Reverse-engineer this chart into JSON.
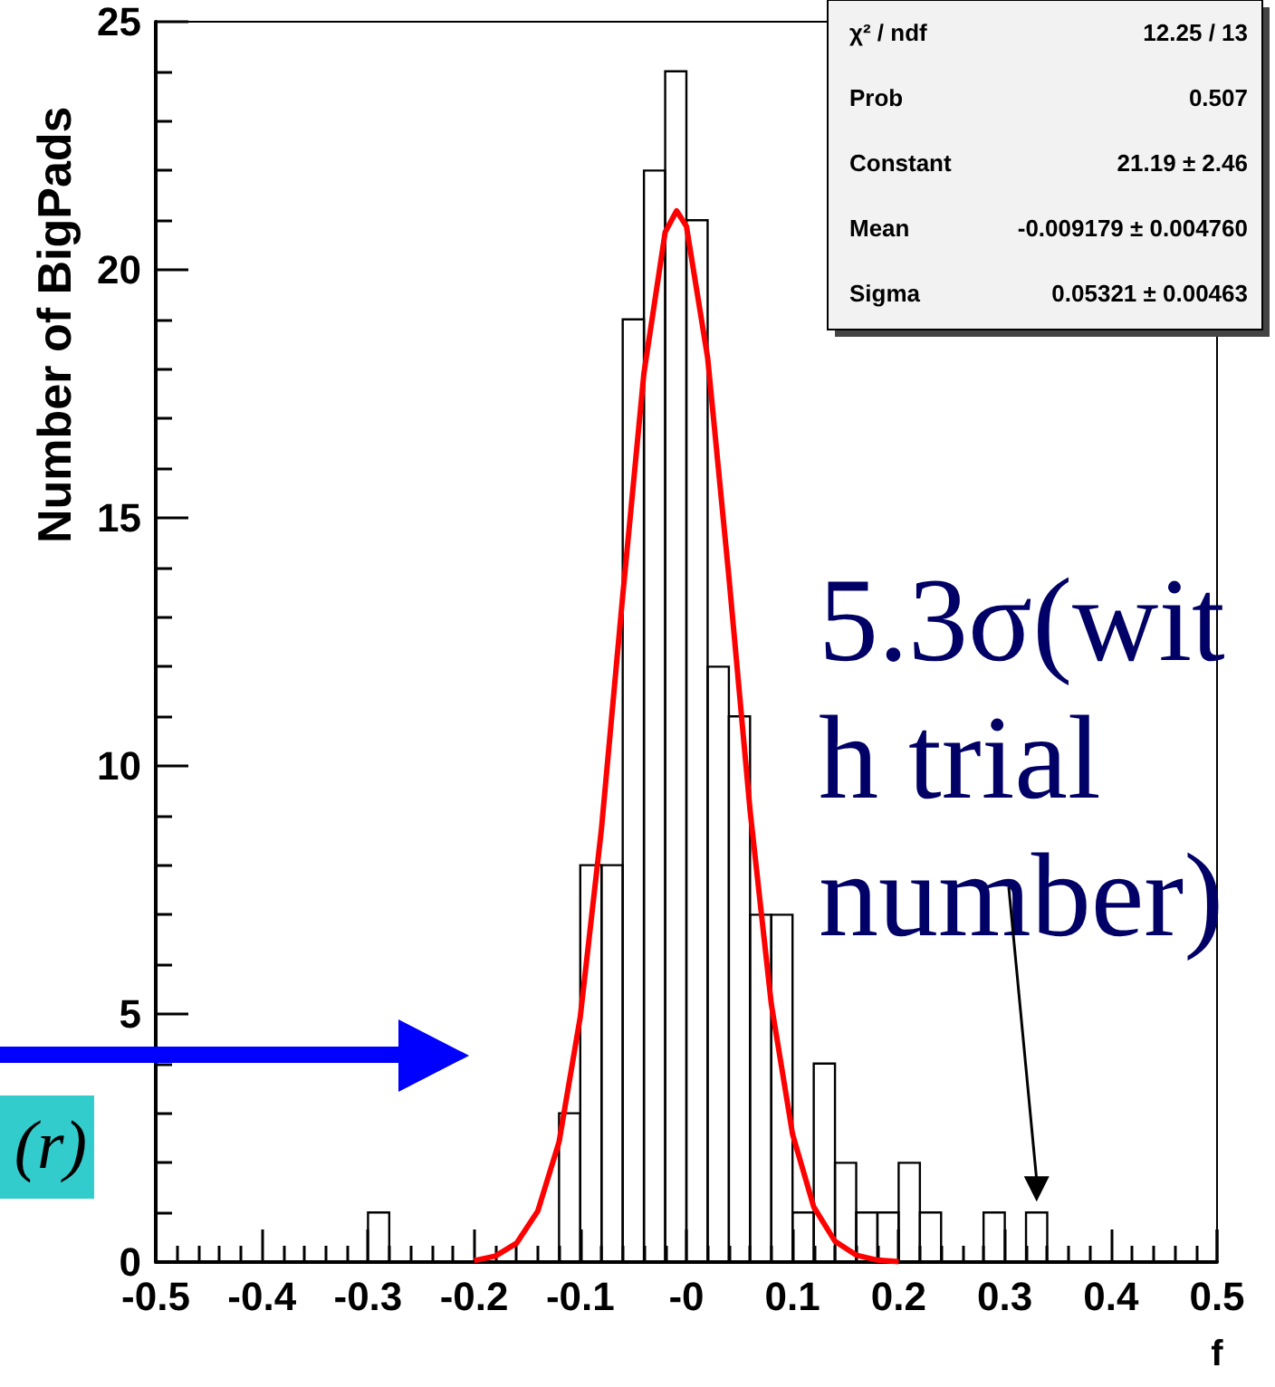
{
  "chart_data": {
    "type": "histogram",
    "xlabel": "f",
    "ylabel": "Number of BigPads",
    "xlim": [
      -0.5,
      0.5
    ],
    "xticks": [
      -0.5,
      -0.4,
      -0.3,
      -0.2,
      -0.1,
      {
        "value": 0,
        "label": "-0"
      },
      0.1,
      0.2,
      0.3,
      0.4,
      0.5
    ],
    "ylim": [
      0,
      25
    ],
    "yticks": [
      0,
      5,
      10,
      15,
      20,
      25
    ],
    "grid": false,
    "marker": "none",
    "series": [
      {
        "color": "#000000",
        "bins": [
          -0.5,
          -0.48,
          -0.46,
          -0.44,
          -0.42,
          -0.4,
          -0.38,
          -0.36,
          -0.34,
          -0.32,
          -0.3,
          -0.28,
          -0.26,
          -0.24,
          -0.22,
          -0.2,
          -0.18,
          -0.16,
          -0.14,
          -0.12,
          -0.1,
          -0.08,
          -0.06,
          -0.04,
          -0.02,
          0,
          0.02,
          0.04,
          0.06,
          0.08,
          0.1,
          0.12,
          0.14,
          0.16,
          0.18,
          0.2,
          0.22,
          0.24,
          0.26,
          0.28,
          0.3,
          0.32,
          0.34,
          0.36,
          0.38,
          0.4,
          0.42,
          0.44,
          0.46,
          0.48,
          0.5
        ],
        "values": [
          0,
          0,
          0,
          0,
          0,
          0,
          0,
          0,
          0,
          0,
          1,
          0,
          0,
          0,
          0,
          0,
          0,
          0,
          0,
          3,
          8,
          8,
          19,
          22,
          24,
          21,
          12,
          11,
          7,
          7,
          1,
          4,
          2,
          1,
          1,
          2,
          1,
          0,
          0,
          1,
          0,
          1,
          0,
          0,
          0,
          0,
          0,
          0,
          0,
          0
        ]
      },
      {
        "type": "line",
        "color": "#ff0000",
        "x": [
          -0.2,
          -0.18,
          -0.16,
          -0.14,
          -0.12,
          -0.1,
          -0.08,
          -0.06,
          -0.04,
          -0.02,
          -0.00918,
          0,
          0.02,
          0.04,
          0.06,
          0.08,
          0.1,
          0.12,
          0.14,
          0.16,
          0.18,
          0.2
        ],
        "values": [
          0.03,
          0.12,
          0.38,
          1.03,
          2.42,
          4.94,
          8.74,
          13.43,
          17.92,
          20.76,
          21.19,
          20.88,
          18.23,
          13.82,
          9.1,
          5.2,
          2.58,
          1.11,
          0.42,
          0.14,
          0.04,
          0.01
        ]
      }
    ],
    "annotations": [
      "χ² / ndf",
      "12.25 / 13",
      "Prob",
      "0.507",
      "Constant",
      "21.19 ± 2.46",
      "Mean",
      "-0.009179 ± 0.004760",
      "Sigma",
      "0.05321 ± 0.00463",
      "(r)",
      {
        "text": "5.3σ(with trial number)",
        "x": 0.33,
        "y": 1
      }
    ]
  }
}
